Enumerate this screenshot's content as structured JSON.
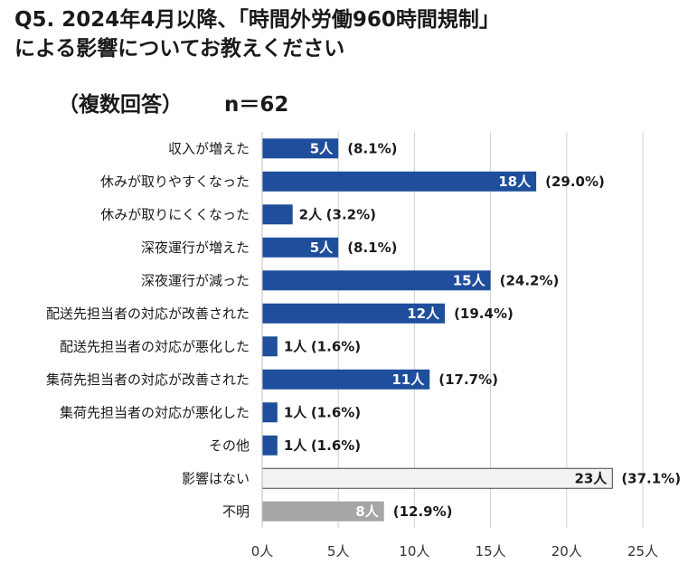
{
  "title": {
    "line1": "Q5. 2024年4月以降、「時間外労働960時間規制」",
    "line2": "による影響についてお教えください"
  },
  "subtitle": {
    "label": "（複数回答）",
    "n": "n＝62"
  },
  "chart_data": {
    "type": "bar",
    "orientation": "horizontal",
    "categories": [
      "収入が増えた",
      "休みが取りやすくなった",
      "休みが取りにくくなった",
      "深夜運行が増えた",
      "深夜運行が減った",
      "配送先担当者の対応が改善された",
      "配送先担当者の対応が悪化した",
      "集荷先担当者の対応が改善された",
      "集荷先担当者の対応が悪化した",
      "その他",
      "影響はない",
      "不明"
    ],
    "values": [
      5,
      18,
      2,
      5,
      15,
      12,
      1,
      11,
      1,
      1,
      23,
      8
    ],
    "value_labels": [
      "5人",
      "18人",
      "2人",
      "5人",
      "15人",
      "12人",
      "1人",
      "11人",
      "1人",
      "1人",
      "23人",
      "8人"
    ],
    "percent_labels": [
      "(8.1%)",
      "(29.0%)",
      "(3.2%)",
      "(8.1%)",
      "(24.2%)",
      "(19.4%)",
      "(1.6%)",
      "(17.7%)",
      "(1.6%)",
      "(1.6%)",
      "(37.1%)",
      "(12.9%)"
    ],
    "bar_colors": [
      "#1f4e9c",
      "#1f4e9c",
      "#1f4e9c",
      "#1f4e9c",
      "#1f4e9c",
      "#1f4e9c",
      "#1f4e9c",
      "#1f4e9c",
      "#1f4e9c",
      "#1f4e9c",
      "#f2f2f2",
      "#a6a6a6"
    ],
    "xlim": [
      0,
      25
    ],
    "xticks": [
      0,
      5,
      10,
      15,
      20,
      25
    ],
    "xtick_labels": [
      "0人",
      "5人",
      "10人",
      "15人",
      "20人",
      "25人"
    ],
    "grid": true
  }
}
